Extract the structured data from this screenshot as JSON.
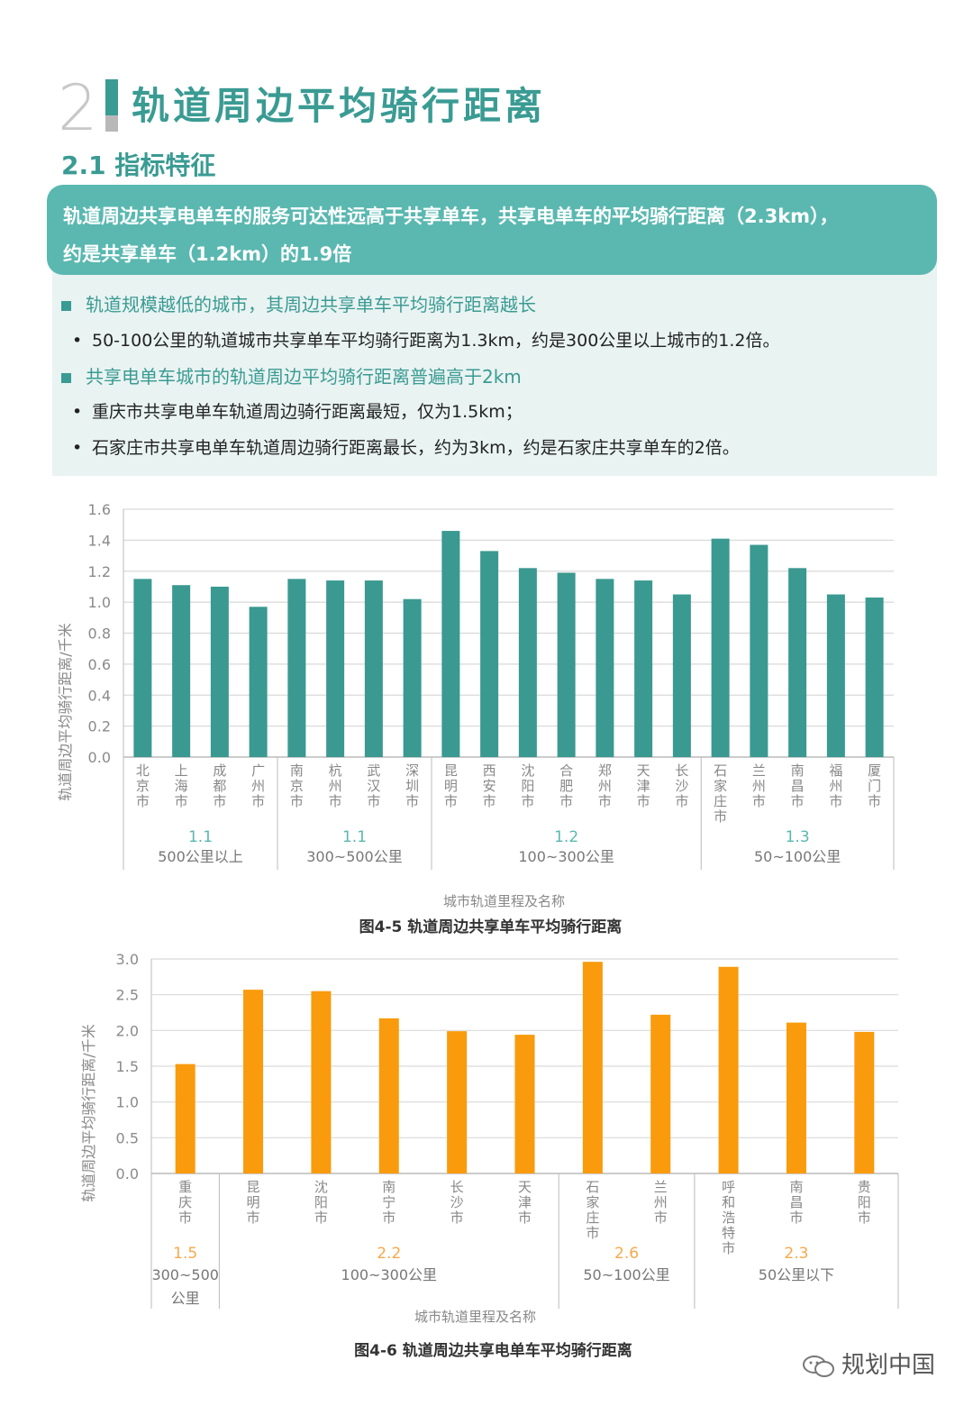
{
  "section": {
    "number": "2",
    "title": "轨道周边平均骑行距离",
    "subtitle": "2.1 指标特征"
  },
  "banner": {
    "lines": [
      "轨道周边共享电单车的服务可达性远高于共享单车，共享电单车的平均骑行距离（2.3km），",
      "约是共享单车（1.2km）的1.9倍"
    ]
  },
  "points": [
    {
      "type": "heading",
      "text": "轨道规模越低的城市，其周边共享单车平均骑行距离越长"
    },
    {
      "type": "bullet",
      "text": "50-100公里的轨道城市共享单车平均骑行距离为1.3km，约是300公里以上城市的1.2倍。"
    },
    {
      "type": "heading",
      "text": "共享电单车城市的轨道周边平均骑行距离普遍高于2km"
    },
    {
      "type": "bullet",
      "text": "重庆市共享电单车轨道周边骑行距离最短，仅为1.5km；"
    },
    {
      "type": "bullet",
      "text": "石家庄市共享电单车轨道周边骑行距离最长，约为3km，约是石家庄共享单车的2倍。"
    }
  ],
  "bullet_glyph": "•",
  "watermark": "规划中国",
  "chart_data": [
    {
      "type": "bar",
      "title": "图4-5 轨道周边共享单车平均骑行距离",
      "xlabel": "城市轨道里程及名称",
      "ylabel": "轨道周边平均骑行距离/千米",
      "ylim": [
        0,
        1.6
      ],
      "yticks": [
        "0.0",
        "0.2",
        "0.4",
        "0.6",
        "0.8",
        "1.0",
        "1.2",
        "1.4",
        "1.6"
      ],
      "grid": true,
      "color": "#3a9990",
      "group_value_color": "#5ab8b0",
      "categories": [
        "北京市",
        "上海市",
        "成都市",
        "广州市",
        "南京市",
        "杭州市",
        "武汉市",
        "深圳市",
        "昆明市",
        "西安市",
        "沈阳市",
        "合肥市",
        "郑州市",
        "天津市",
        "长沙市",
        "石家庄市",
        "兰州市",
        "南昌市",
        "福州市",
        "厦门市"
      ],
      "values": [
        1.15,
        1.11,
        1.1,
        0.97,
        1.15,
        1.14,
        1.14,
        1.02,
        1.46,
        1.33,
        1.22,
        1.19,
        1.15,
        1.14,
        1.05,
        1.41,
        1.37,
        1.22,
        1.05,
        1.03
      ],
      "groups": [
        {
          "name": "500公里以上",
          "value": "1.1",
          "count": 4
        },
        {
          "name": "300~500公里",
          "value": "1.1",
          "count": 4
        },
        {
          "name": "100~300公里",
          "value": "1.2",
          "count": 7
        },
        {
          "name": "50~100公里",
          "value": "1.3",
          "count": 5
        }
      ]
    },
    {
      "type": "bar",
      "title": "图4-6 轨道周边共享电单车平均骑行距离",
      "xlabel": "城市轨道里程及名称",
      "ylabel": "轨道周边平均骑行距离/千米",
      "ylim": [
        0,
        3.0
      ],
      "yticks": [
        "0.0",
        "0.5",
        "1.0",
        "1.5",
        "2.0",
        "2.5",
        "3.0"
      ],
      "grid": true,
      "color": "#f99b0c",
      "group_value_color": "#f9a84a",
      "categories": [
        "重庆市",
        "昆明市",
        "沈阳市",
        "南宁市",
        "长沙市",
        "天津市",
        "石家庄市",
        "兰州市",
        "呼和浩特市",
        "南昌市",
        "贵阳市"
      ],
      "values": [
        1.53,
        2.57,
        2.55,
        2.17,
        1.99,
        1.94,
        2.96,
        2.22,
        2.89,
        2.11,
        1.98
      ],
      "groups": [
        {
          "name": "300~500公里",
          "value": "1.5",
          "count": 1
        },
        {
          "name": "100~300公里",
          "value": "2.2",
          "count": 5
        },
        {
          "name": "50~100公里",
          "value": "2.6",
          "count": 2
        },
        {
          "name": "50公里以下",
          "value": "2.3",
          "count": 3
        }
      ]
    }
  ]
}
